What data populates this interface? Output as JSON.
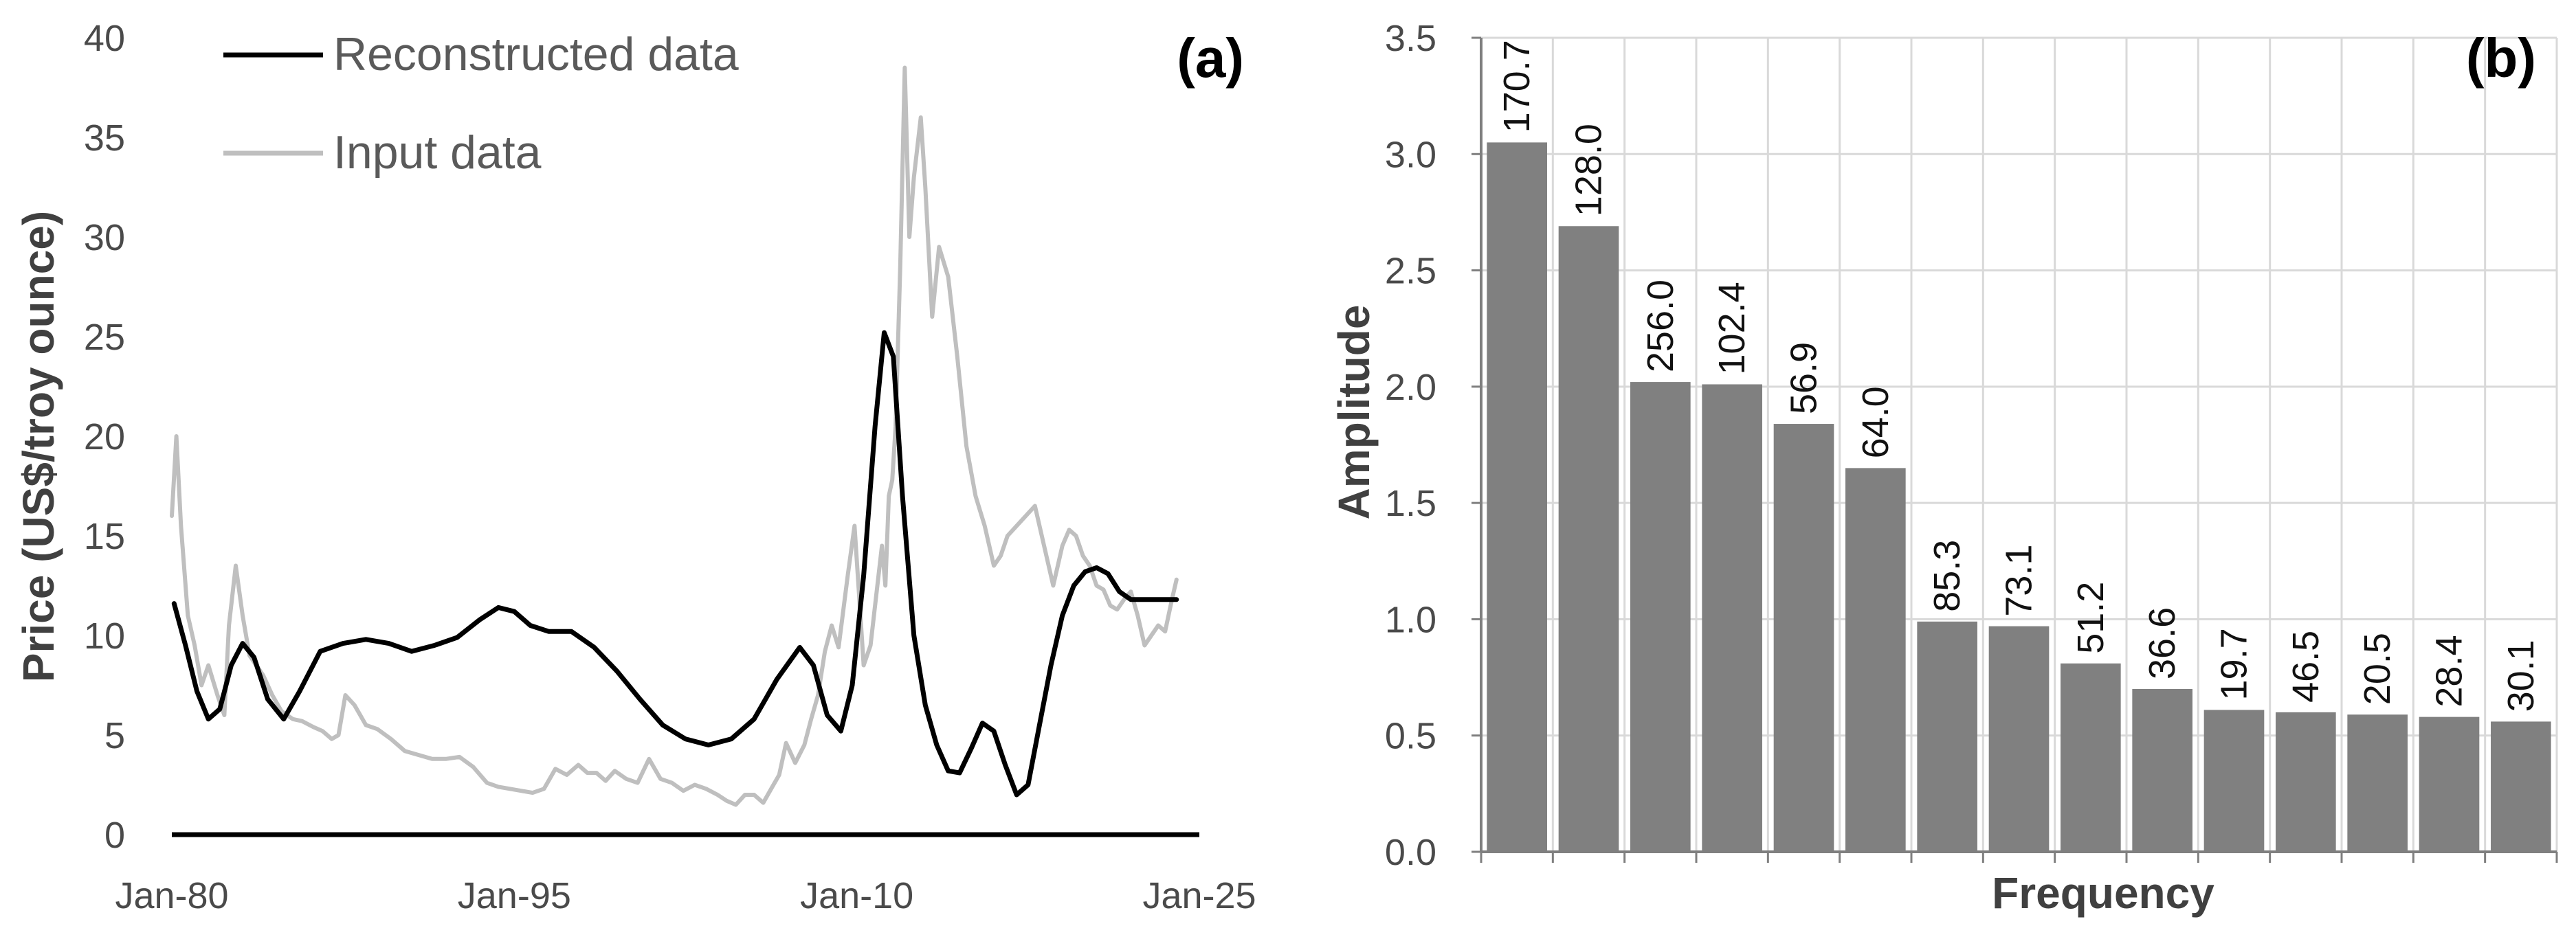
{
  "chart_data": [
    {
      "type": "line",
      "panel_label": "(a)",
      "ylabel": "Price (US$/troy ounce)",
      "xlabel": "",
      "ylim": [
        0,
        40
      ],
      "yticks": [
        "0",
        "5",
        "10",
        "15",
        "20",
        "25",
        "30",
        "35",
        "40"
      ],
      "x_tick_labels": [
        "Jan-80",
        "Jan-95",
        "Jan-10",
        "Jan-25"
      ],
      "xlim": [
        1980,
        2025
      ],
      "grid": false,
      "legend_position": "top-left",
      "series": [
        {
          "name": "Reconstructed data",
          "color": "#000000",
          "x": [
            1980.1,
            1980.6,
            1981.1,
            1981.6,
            1982.1,
            1982.6,
            1983.1,
            1983.6,
            1984.2,
            1984.9,
            1985.6,
            1986.5,
            1987.5,
            1988.5,
            1989.5,
            1990.5,
            1991.5,
            1992.5,
            1993.5,
            1994.3,
            1995.0,
            1995.7,
            1996.5,
            1997.5,
            1998.5,
            1999.5,
            2000.5,
            2001.5,
            2002.5,
            2003.5,
            2004.5,
            2005.5,
            2006.5,
            2007.5,
            2008.1,
            2008.7,
            2009.3,
            2009.8,
            2010.3,
            2010.8,
            2011.2,
            2011.6,
            2012.0,
            2012.5,
            2013.0,
            2013.5,
            2014.0,
            2014.5,
            2015.0,
            2015.5,
            2016.0,
            2016.5,
            2017.0,
            2017.5,
            2018.0,
            2018.5,
            2019.0,
            2019.5,
            2020.0,
            2020.5,
            2021.0,
            2021.5,
            2022.0,
            2022.5,
            2023.0,
            2023.5,
            2024.0
          ],
          "y": [
            11.6,
            9.5,
            7.2,
            5.8,
            6.3,
            8.5,
            9.6,
            8.9,
            6.8,
            5.8,
            7.2,
            9.2,
            9.6,
            9.8,
            9.6,
            9.2,
            9.5,
            9.9,
            10.8,
            11.4,
            11.2,
            10.5,
            10.2,
            10.2,
            9.4,
            8.2,
            6.8,
            5.5,
            4.8,
            4.5,
            4.8,
            5.8,
            7.8,
            9.4,
            8.5,
            6.0,
            5.2,
            7.5,
            13.0,
            20.5,
            25.2,
            24.0,
            17.0,
            10.0,
            6.5,
            4.5,
            3.2,
            3.1,
            4.3,
            5.6,
            5.2,
            3.5,
            2.0,
            2.5,
            5.5,
            8.5,
            11.0,
            12.5,
            13.2,
            13.4,
            13.1,
            12.2,
            11.8,
            11.8,
            11.8,
            11.8,
            11.8
          ]
        },
        {
          "name": "Input data",
          "color": "#bfbfbf",
          "x": [
            1980.0,
            1980.2,
            1980.4,
            1980.7,
            1981.0,
            1981.3,
            1981.6,
            1982.0,
            1982.3,
            1982.5,
            1982.8,
            1983.1,
            1983.4,
            1983.7,
            1984.0,
            1984.4,
            1984.8,
            1985.3,
            1985.7,
            1986.2,
            1986.6,
            1987.0,
            1987.3,
            1987.6,
            1988.0,
            1988.5,
            1989.0,
            1989.6,
            1990.2,
            1990.8,
            1991.4,
            1992.0,
            1992.6,
            1993.2,
            1993.8,
            1994.3,
            1994.8,
            1995.3,
            1995.8,
            1996.3,
            1996.8,
            1997.3,
            1997.8,
            1998.2,
            1998.6,
            1999.0,
            1999.4,
            1999.9,
            2000.4,
            2000.9,
            2001.4,
            2001.9,
            2002.4,
            2002.9,
            2003.4,
            2003.9,
            2004.3,
            2004.7,
            2005.1,
            2005.5,
            2005.9,
            2006.3,
            2006.6,
            2006.9,
            2007.3,
            2007.7,
            2008.0,
            2008.3,
            2008.6,
            2008.9,
            2009.2,
            2009.6,
            2009.9,
            2010.1,
            2010.3,
            2010.6,
            2010.8,
            2010.95,
            2011.1,
            2011.25,
            2011.4,
            2011.55,
            2011.7,
            2011.9,
            2012.1,
            2012.3,
            2012.5,
            2012.8,
            2013.0,
            2013.3,
            2013.6,
            2014.0,
            2014.4,
            2014.8,
            2015.2,
            2015.6,
            2016.0,
            2016.3,
            2016.6,
            2017.0,
            2017.4,
            2017.8,
            2018.2,
            2018.6,
            2019.0,
            2019.3,
            2019.6,
            2019.9,
            2020.2,
            2020.5,
            2020.8,
            2021.1,
            2021.4,
            2021.7,
            2022.0,
            2022.3,
            2022.6,
            2022.9,
            2023.2,
            2023.5,
            2023.8,
            2024.0
          ],
          "y": [
            16.0,
            20.0,
            15.5,
            11.0,
            9.5,
            7.5,
            8.5,
            7.0,
            6.0,
            10.5,
            13.5,
            11.0,
            9.0,
            8.5,
            8.0,
            7.0,
            6.2,
            5.8,
            5.7,
            5.4,
            5.2,
            4.8,
            5.0,
            7.0,
            6.5,
            5.5,
            5.3,
            4.8,
            4.2,
            4.0,
            3.8,
            3.8,
            3.9,
            3.4,
            2.6,
            2.4,
            2.3,
            2.2,
            2.1,
            2.3,
            3.3,
            3.0,
            3.5,
            3.1,
            3.1,
            2.7,
            3.2,
            2.8,
            2.6,
            3.8,
            2.8,
            2.6,
            2.2,
            2.5,
            2.3,
            2.0,
            1.7,
            1.5,
            2.0,
            2.0,
            1.6,
            2.4,
            3.0,
            4.6,
            3.6,
            4.5,
            5.8,
            7.0,
            9.2,
            10.5,
            9.4,
            13.0,
            15.5,
            12.0,
            8.5,
            9.5,
            11.5,
            13.0,
            14.5,
            12.5,
            17.0,
            17.8,
            20.5,
            28.5,
            38.5,
            30.0,
            33.0,
            36.0,
            32.5,
            26.0,
            29.5,
            28.0,
            24.0,
            19.5,
            17.0,
            15.5,
            13.5,
            14.0,
            15.0,
            15.5,
            16.0,
            16.5,
            14.5,
            12.5,
            14.5,
            15.3,
            15.0,
            14.0,
            13.5,
            12.5,
            12.3,
            11.5,
            11.3,
            11.8,
            12.2,
            11.0,
            9.5,
            10.0,
            10.5,
            10.2,
            11.8,
            12.8
          ]
        }
      ]
    },
    {
      "type": "bar",
      "panel_label": "(b)",
      "xlabel": "Frequency",
      "ylabel": "Amplitude",
      "ylim": [
        0,
        3.5
      ],
      "yticks": [
        "0.0",
        "0.5",
        "1.0",
        "1.5",
        "2.0",
        "2.5",
        "3.0",
        "3.5"
      ],
      "grid": true,
      "bar_color": "#808080",
      "categories": [
        "170.7",
        "128.0",
        "256.0",
        "102.4",
        "56.9",
        "64.0",
        "85.3",
        "73.1",
        "51.2",
        "36.6",
        "19.7",
        "46.5",
        "20.5",
        "28.4",
        "30.1"
      ],
      "values": [
        3.05,
        2.69,
        2.02,
        2.01,
        1.84,
        1.65,
        0.99,
        0.97,
        0.81,
        0.7,
        0.61,
        0.6,
        0.59,
        0.58,
        0.56
      ]
    }
  ]
}
